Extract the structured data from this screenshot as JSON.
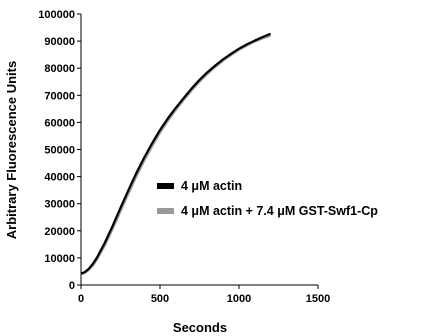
{
  "chart_data": {
    "type": "line",
    "title": "",
    "xlabel": "Seconds",
    "ylabel": "Arbitrary Fluorescence Units",
    "xlim": [
      0,
      1500
    ],
    "ylim": [
      0,
      100000
    ],
    "xticks": [
      "0",
      "500",
      "1000",
      "1500"
    ],
    "yticks": [
      "0",
      "10000",
      "20000",
      "30000",
      "40000",
      "50000",
      "60000",
      "70000",
      "80000",
      "90000",
      "100000"
    ],
    "grid": false,
    "legend_position": "center-right",
    "series": [
      {
        "name": "4 μM actin",
        "color": "#000000",
        "x": [
          0,
          25,
          50,
          75,
          100,
          150,
          200,
          250,
          300,
          350,
          400,
          450,
          500,
          550,
          600,
          650,
          700,
          750,
          800,
          850,
          900,
          950,
          1000,
          1050,
          1100,
          1150,
          1200
        ],
        "y": [
          4200,
          4800,
          6000,
          7800,
          10000,
          15500,
          21800,
          28500,
          35000,
          41300,
          47000,
          52300,
          57200,
          61500,
          65400,
          69000,
          72500,
          75700,
          78500,
          81000,
          83300,
          85300,
          87200,
          88800,
          90200,
          91500,
          92700
        ]
      },
      {
        "name": "4 μM actin + 7.4 μM GST-Swf1-Cp",
        "color": "#999999",
        "x": [
          0,
          25,
          50,
          75,
          100,
          150,
          200,
          250,
          300,
          350,
          400,
          450,
          500,
          550,
          600,
          650,
          700,
          750,
          800,
          850,
          900,
          950,
          1000,
          1050,
          1100,
          1150,
          1200
        ],
        "y": [
          4000,
          4500,
          5600,
          7200,
          9300,
          14500,
          20600,
          27200,
          33700,
          40000,
          45900,
          51200,
          56200,
          60600,
          64600,
          68300,
          71800,
          75000,
          77900,
          80500,
          82800,
          84900,
          86800,
          88400,
          89800,
          91000,
          92000
        ]
      }
    ]
  }
}
